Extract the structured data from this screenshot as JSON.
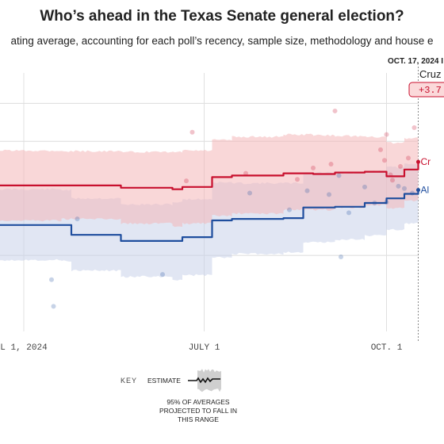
{
  "header": {
    "title": "Who’s ahead in the Texas Senate general election?",
    "subtitle": "ating average, accounting for each poll’s recency, sample size, methodology and house e"
  },
  "chart_data": {
    "type": "line",
    "x_ticks": [
      {
        "date": "2024-04-01",
        "label": "L 1, 2024"
      },
      {
        "date": "2024-07-01",
        "label": "JULY 1"
      },
      {
        "date": "2024-10-01",
        "label": "OCT. 1"
      }
    ],
    "current_date": "2024-10-17",
    "current_date_label": "OCT. 17, 2024 I",
    "series": [
      {
        "name": "Cruz",
        "label": "Cr",
        "color": "#c8102e",
        "band_color": "#f4b6b8",
        "x": [
          "2024-03-20",
          "2024-04-20",
          "2024-05-20",
          "2024-06-15",
          "2024-06-20",
          "2024-07-05",
          "2024-07-15",
          "2024-08-10",
          "2024-08-25",
          "2024-09-05",
          "2024-09-20",
          "2024-10-01",
          "2024-10-10",
          "2024-10-17"
        ],
        "y": [
          49.2,
          49.2,
          48.9,
          48.7,
          49.0,
          50.3,
          50.5,
          50.8,
          50.7,
          50.9,
          51.0,
          50.4,
          51.3,
          52.3
        ],
        "band_low": [
          44.6,
          44.8,
          44.2,
          43.8,
          44.2,
          45.2,
          45.5,
          46.0,
          46.0,
          46.3,
          46.6,
          46.2,
          47.2,
          48.3
        ],
        "band_high": [
          53.8,
          53.7,
          53.6,
          53.6,
          53.8,
          55.2,
          55.6,
          55.9,
          55.8,
          55.7,
          55.6,
          54.8,
          55.4,
          56.0
        ]
      },
      {
        "name": "Allred",
        "label": "Al",
        "color": "#1f4e9e",
        "band_color": "#c9d2ea",
        "x": [
          "2024-03-20",
          "2024-04-20",
          "2024-04-25",
          "2024-05-20",
          "2024-06-15",
          "2024-06-20",
          "2024-07-05",
          "2024-07-15",
          "2024-08-10",
          "2024-08-20",
          "2024-09-05",
          "2024-09-20",
          "2024-10-01",
          "2024-10-10",
          "2024-10-17"
        ],
        "y": [
          44.0,
          44.0,
          42.7,
          41.9,
          41.9,
          42.4,
          44.6,
          44.8,
          44.9,
          46.3,
          46.4,
          46.9,
          47.5,
          48.1,
          48.6
        ],
        "band_low": [
          39.4,
          39.3,
          38.0,
          37.2,
          36.8,
          37.4,
          39.7,
          40.2,
          40.4,
          41.7,
          42.1,
          42.6,
          43.4,
          44.2,
          44.7
        ],
        "band_high": [
          48.7,
          48.6,
          47.5,
          46.7,
          47.0,
          47.4,
          49.6,
          49.5,
          49.5,
          50.9,
          50.8,
          51.1,
          51.6,
          52.1,
          52.5
        ]
      }
    ],
    "polls": [
      {
        "date": "2024-04-15",
        "value": 36.8,
        "candidate": "Allred"
      },
      {
        "date": "2024-04-16",
        "value": 33.3,
        "candidate": "Allred"
      },
      {
        "date": "2024-04-28",
        "value": 44.8,
        "candidate": "Allred"
      },
      {
        "date": "2024-06-10",
        "value": 37.5,
        "candidate": "Allred"
      },
      {
        "date": "2024-06-22",
        "value": 49.8,
        "candidate": "Cruz"
      },
      {
        "date": "2024-06-25",
        "value": 56.2,
        "candidate": "Cruz"
      },
      {
        "date": "2024-07-22",
        "value": 50.8,
        "candidate": "Cruz"
      },
      {
        "date": "2024-07-24",
        "value": 48.2,
        "candidate": "Allred"
      },
      {
        "date": "2024-08-13",
        "value": 46.0,
        "candidate": "Allred"
      },
      {
        "date": "2024-08-17",
        "value": 50.0,
        "candidate": "Cruz"
      },
      {
        "date": "2024-08-22",
        "value": 48.5,
        "candidate": "Allred"
      },
      {
        "date": "2024-08-25",
        "value": 51.5,
        "candidate": "Cruz"
      },
      {
        "date": "2024-09-02",
        "value": 48.0,
        "candidate": "Allred"
      },
      {
        "date": "2024-09-03",
        "value": 52.0,
        "candidate": "Cruz"
      },
      {
        "date": "2024-09-05",
        "value": 59.0,
        "candidate": "Cruz"
      },
      {
        "date": "2024-09-07",
        "value": 50.5,
        "candidate": "Allred"
      },
      {
        "date": "2024-09-08",
        "value": 39.8,
        "candidate": "Allred"
      },
      {
        "date": "2024-09-12",
        "value": 45.6,
        "candidate": "Allred"
      },
      {
        "date": "2024-09-20",
        "value": 49.0,
        "candidate": "Allred"
      },
      {
        "date": "2024-09-25",
        "value": 46.9,
        "candidate": "Allred"
      },
      {
        "date": "2024-09-28",
        "value": 53.9,
        "candidate": "Cruz"
      },
      {
        "date": "2024-09-30",
        "value": 52.5,
        "candidate": "Cruz"
      },
      {
        "date": "2024-10-01",
        "value": 47.0,
        "candidate": "Allred"
      },
      {
        "date": "2024-10-01",
        "value": 55.9,
        "candidate": "Cruz"
      },
      {
        "date": "2024-10-03",
        "value": 50.6,
        "candidate": "Cruz"
      },
      {
        "date": "2024-10-04",
        "value": 49.9,
        "candidate": "Cruz"
      },
      {
        "date": "2024-10-07",
        "value": 49.1,
        "candidate": "Allred"
      },
      {
        "date": "2024-10-08",
        "value": 51.7,
        "candidate": "Cruz"
      },
      {
        "date": "2024-10-10",
        "value": 48.8,
        "candidate": "Allred"
      },
      {
        "date": "2024-10-12",
        "value": 52.8,
        "candidate": "Cruz"
      },
      {
        "date": "2024-10-14",
        "value": 48.2,
        "candidate": "Allred"
      },
      {
        "date": "2024-10-15",
        "value": 56.8,
        "candidate": "Cruz"
      }
    ],
    "callout": {
      "name": "Cruz",
      "margin": "+3.7"
    },
    "xlim": [
      "2024-03-20",
      "2024-10-30"
    ],
    "ylim": [
      30,
      64
    ],
    "gridlines_y": [
      40,
      55,
      60
    ],
    "grid": true
  },
  "key": {
    "key_label": "KEY",
    "estimate_label": "ESTIMATE",
    "range_lines": [
      "95% OF AVERAGES",
      "PROJECTED TO FALL IN",
      "THIS RANGE"
    ]
  }
}
